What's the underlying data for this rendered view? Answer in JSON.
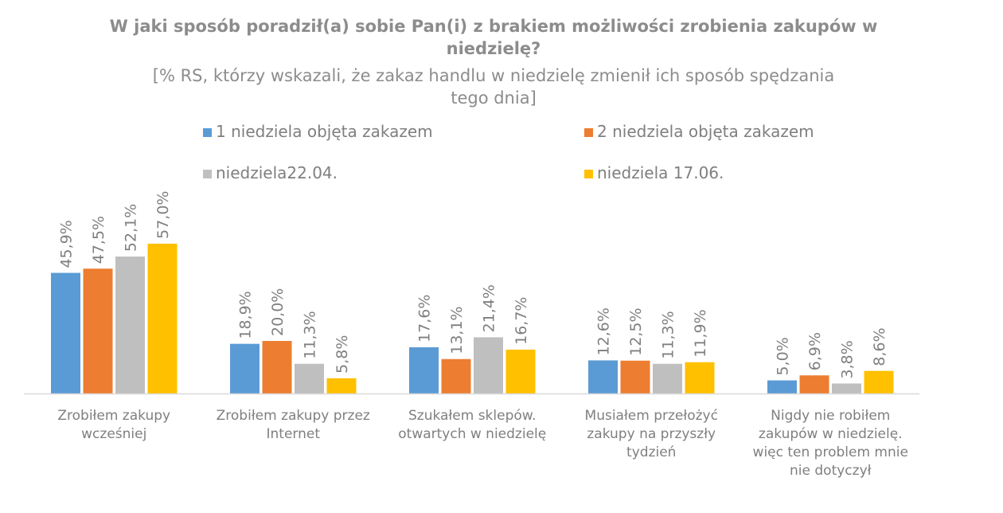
{
  "chart_data": {
    "type": "bar",
    "title": "W jaki sposób poradził(a) sobie Pan(i) z brakiem możliwości zrobienia zakupów w niedzielę?",
    "subtitle": "[% RS, którzy wskazali, że zakaz handlu w niedzielę zmienił ich sposób spędzania tego dnia]",
    "categories": [
      [
        "Zrobiłem zakupy",
        "wcześniej"
      ],
      [
        "Zrobiłem zakupy przez",
        "Internet"
      ],
      [
        "Szukałem sklepów.",
        "otwartych w niedzielę"
      ],
      [
        "Musiałem przełożyć",
        "zakupy na przyszły",
        "tydzień"
      ],
      [
        "Nigdy nie robiłem",
        "zakupów w niedzielę.",
        "więc ten problem mnie",
        "nie dotyczył"
      ]
    ],
    "series": [
      {
        "name": "1 niedziela objęta zakazem",
        "color": "#5b9bd5",
        "values": [
          45.9,
          18.9,
          17.6,
          12.6,
          5.0
        ],
        "labels": [
          "45,9%",
          "18,9%",
          "17,6%",
          "12,6%",
          "5,0%"
        ]
      },
      {
        "name": "2 niedziela objęta zakazem",
        "color": "#ed7d31",
        "values": [
          47.5,
          20.0,
          13.1,
          12.5,
          6.9
        ],
        "labels": [
          "47,5%",
          "20,0%",
          "13,1%",
          "12,5%",
          "6,9%"
        ]
      },
      {
        "name": "niedziela22.04.",
        "color": "#bfbfbf",
        "values": [
          52.1,
          11.3,
          21.4,
          11.3,
          3.8
        ],
        "labels": [
          "52,1%",
          "11,3%",
          "21,4%",
          "11,3%",
          "3,8%"
        ]
      },
      {
        "name": "niedziela 17.06.",
        "color": "#ffc000",
        "values": [
          57.0,
          5.8,
          16.7,
          11.9,
          8.6
        ],
        "labels": [
          "57,0%",
          "5,8%",
          "16,7%",
          "11,9%",
          "8,6%"
        ]
      }
    ],
    "ylim": [
      0,
      70
    ],
    "grid": false,
    "legend": "top"
  },
  "header": {
    "title_line1": "W jaki sposób poradził(a) sobie Pan(i) z brakiem możliwości zrobienia zakupów w",
    "title_line2": "niedzielę?",
    "subtitle_line1": "[% RS, którzy wskazali, że zakaz handlu w niedzielę zmienił ich sposób spędzania",
    "subtitle_line2": "tego dnia]"
  }
}
